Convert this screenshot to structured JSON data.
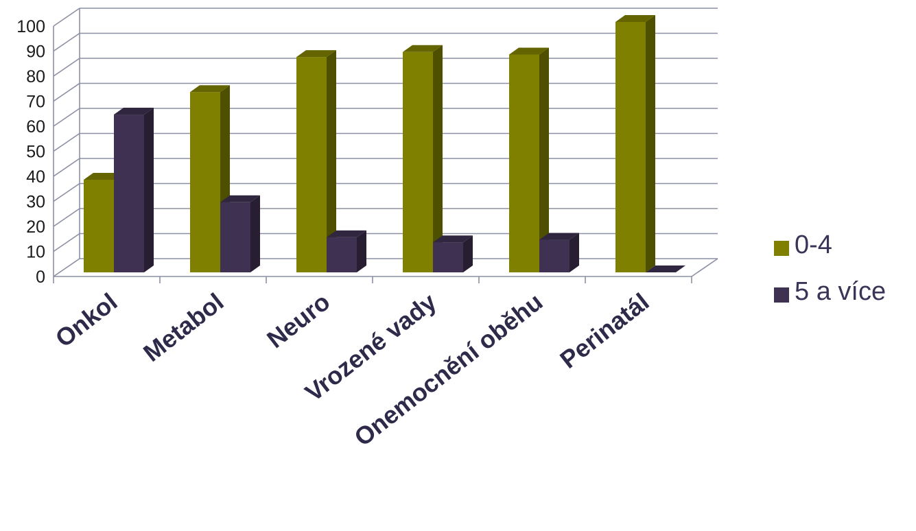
{
  "chart_data": {
    "type": "bar",
    "categories": [
      "Onkol",
      "Metabol",
      "Neuro",
      "Vrozené vady",
      "Onemocnění oběhu",
      "Perinatál"
    ],
    "series": [
      {
        "name": "0-4",
        "values": [
          37,
          72,
          86,
          88,
          87,
          100
        ],
        "color": "#808000"
      },
      {
        "name": "5 a více",
        "values": [
          63,
          28,
          14,
          12,
          13,
          0
        ],
        "color": "#3f3151"
      }
    ],
    "ylim": [
      0,
      100
    ],
    "yticks": [
      "0",
      "10",
      "20",
      "30",
      "40",
      "50",
      "60",
      "70",
      "80",
      "90",
      "100"
    ],
    "grid": true,
    "legend_position": "right",
    "style": "3d-column"
  }
}
